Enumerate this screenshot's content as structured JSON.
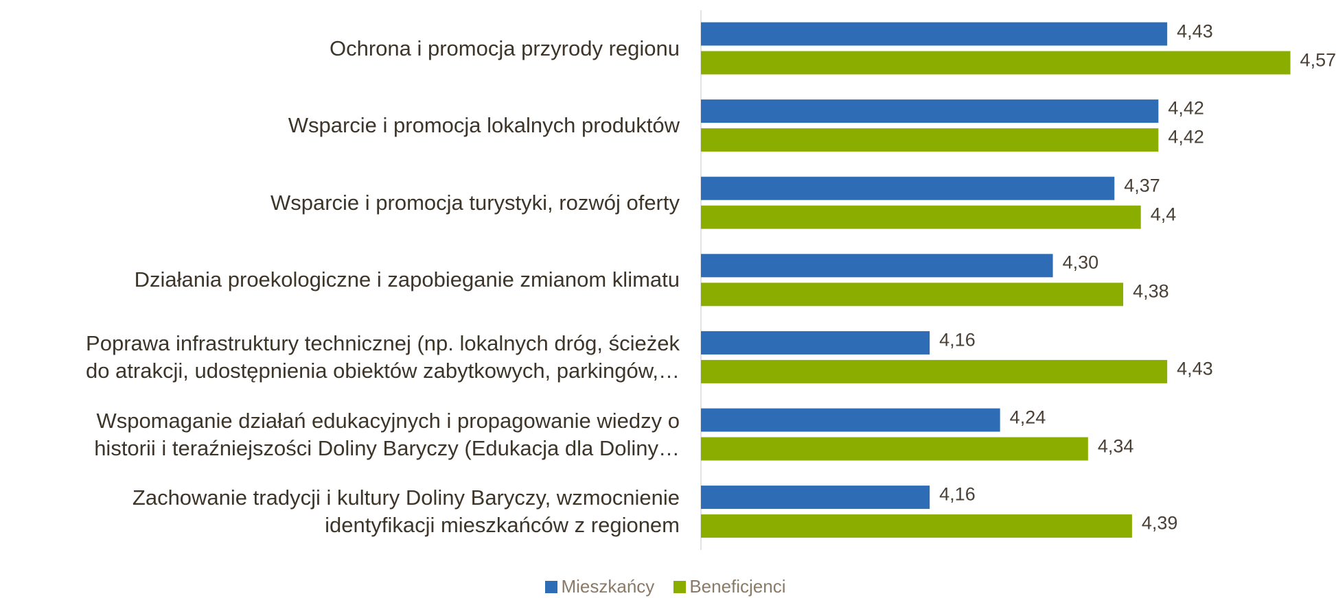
{
  "chart_data": {
    "type": "hbar",
    "categories": [
      "Ochrona i promocja przyrody regionu",
      "Wsparcie i promocja lokalnych produktów",
      "Wsparcie i promocja turystyki, rozwój oferty",
      "Działania proekologiczne i zapobieganie zmianom klimatu",
      "Poprawa infrastruktury technicznej (np. lokalnych dróg, ścieżek\ndo atrakcji, udostępnienia obiektów zabytkowych, parkingów,…",
      "Wspomaganie działań edukacyjnych i propagowanie wiedzy o\nhistorii i teraźniejszości Doliny Baryczy (Edukacja dla Doliny…",
      "Zachowanie tradycji i kultury Doliny Baryczy, wzmocnienie\nidentyfikacji mieszkańców z regionem"
    ],
    "series": [
      {
        "name": "Mieszkańcy",
        "color": "#2e6db5",
        "values": [
          4.43,
          4.42,
          4.37,
          4.3,
          4.16,
          4.24,
          4.16
        ],
        "value_labels": [
          "4,43",
          "4,42",
          "4,37",
          "4,30",
          "4,16",
          "4,24",
          "4,16"
        ]
      },
      {
        "name": "Beneficjenci",
        "color": "#8aad00",
        "values": [
          4.57,
          4.42,
          4.4,
          4.38,
          4.43,
          4.34,
          4.39
        ],
        "value_labels": [
          "4,57",
          "4,42",
          "4,4",
          "4,38",
          "4,43",
          "4,34",
          "4,39"
        ]
      }
    ],
    "xlim": [
      3.9,
      4.6
    ],
    "legend": "bottom"
  }
}
